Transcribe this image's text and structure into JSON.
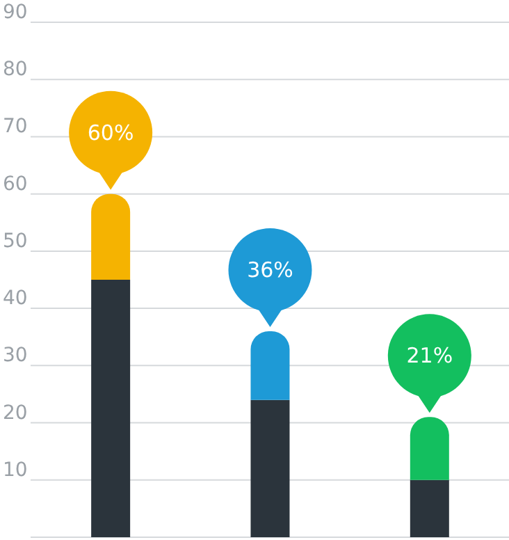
{
  "chart_data": {
    "type": "bar",
    "stacked": true,
    "categories": [
      null,
      null,
      null
    ],
    "series": [
      {
        "color": "#2b343c",
        "values": [
          45,
          24,
          10
        ]
      },
      {
        "colors": [
          "#f5b301",
          "#1e9ad6",
          "#13bf5f"
        ],
        "values": [
          15,
          12,
          11
        ]
      }
    ],
    "totals": [
      "60%",
      "36%",
      "21%"
    ],
    "ylim": [
      0,
      90
    ],
    "yticks": [
      {
        "value": 0,
        "label": null
      },
      10,
      20,
      30,
      40,
      50,
      60,
      70,
      80,
      90
    ],
    "grid": "y",
    "tick_labels": "y"
  }
}
